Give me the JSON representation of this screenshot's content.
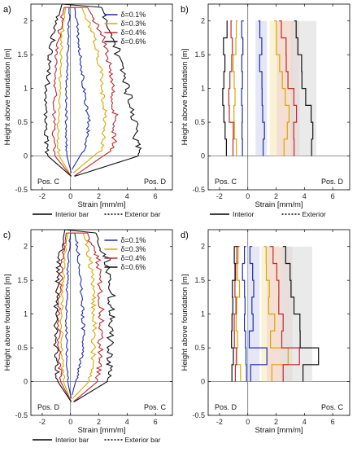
{
  "figure": {
    "ylabel": "Height above foundation [m]",
    "xlabel": "Strain [mm/m]",
    "ytick_labels": [
      "-0.5",
      "0",
      "0.5",
      "1",
      "1.5",
      "2"
    ],
    "xtick_labels": [
      "-2",
      "0",
      "2",
      "4",
      "6"
    ],
    "legend_entries": [
      "δ=0.1%",
      "δ=0.3%",
      "δ=0.4%",
      "δ=0.6%"
    ],
    "series_colors": [
      "#1f2fa8",
      "#d8a800",
      "#c0282f",
      "#111111"
    ],
    "band_colors": [
      "#cfd3ee",
      "#f4e7b2",
      "#f3cdd0",
      "#d8d8d8"
    ]
  },
  "chart_data": [
    {
      "type": "line",
      "panel_label": "a)",
      "xlabel": "Strain [mm/m]",
      "ylabel": "Height above foundation [m]",
      "xlim": [
        -2.8,
        7.2
      ],
      "ylim": [
        -0.5,
        2.25
      ],
      "grid": false,
      "left_corner_label": "Pos. C",
      "right_corner_label": "Pos. D",
      "legend": [
        "δ=0.1%",
        "δ=0.3%",
        "δ=0.4%",
        "δ=0.6%"
      ],
      "legend_position": "top-right",
      "bottom_legend": [
        "Interior bar",
        "Exterior bar"
      ],
      "series": [
        {
          "name": "δ=0.1%",
          "left": [
            [
              0.05,
              -0.25
            ],
            [
              -0.25,
              0.0
            ],
            [
              -0.3,
              0.2
            ],
            [
              -0.3,
              0.6
            ],
            [
              -0.3,
              1.0
            ],
            [
              -0.2,
              1.4
            ],
            [
              -0.15,
              1.8
            ],
            [
              -0.1,
              2.2
            ]
          ],
          "right": [
            [
              0.1,
              -0.2
            ],
            [
              1.1,
              0.15
            ],
            [
              1.3,
              0.5
            ],
            [
              1.0,
              0.9
            ],
            [
              0.8,
              1.3
            ],
            [
              0.6,
              1.7
            ],
            [
              0.3,
              2.2
            ]
          ]
        },
        {
          "name": "δ=0.3%",
          "left": [
            [
              0.05,
              -0.3
            ],
            [
              -0.8,
              0.0
            ],
            [
              -0.9,
              0.4
            ],
            [
              -0.8,
              0.9
            ],
            [
              -0.7,
              1.4
            ],
            [
              -0.6,
              1.8
            ],
            [
              -0.35,
              2.2
            ]
          ],
          "right": [
            [
              0.2,
              -0.25
            ],
            [
              2.2,
              0.1
            ],
            [
              2.5,
              0.5
            ],
            [
              2.3,
              0.9
            ],
            [
              2.1,
              1.3
            ],
            [
              1.6,
              1.8
            ],
            [
              0.8,
              2.2
            ]
          ]
        },
        {
          "name": "δ=0.4%",
          "left": [
            [
              0.05,
              -0.3
            ],
            [
              -1.1,
              0.0
            ],
            [
              -1.2,
              0.4
            ],
            [
              -1.1,
              0.9
            ],
            [
              -1.0,
              1.4
            ],
            [
              -0.8,
              1.8
            ],
            [
              -0.45,
              2.2
            ]
          ],
          "right": [
            [
              0.25,
              -0.3
            ],
            [
              3.0,
              0.1
            ],
            [
              3.2,
              0.5
            ],
            [
              3.0,
              0.9
            ],
            [
              2.8,
              1.3
            ],
            [
              2.3,
              1.8
            ],
            [
              1.2,
              2.2
            ]
          ]
        },
        {
          "name": "δ=0.6%",
          "left": [
            [
              0.05,
              -0.3
            ],
            [
              -1.6,
              0.0
            ],
            [
              -1.8,
              0.4
            ],
            [
              -1.7,
              0.9
            ],
            [
              -1.5,
              1.4
            ],
            [
              -1.2,
              1.8
            ],
            [
              -0.6,
              2.25
            ]
          ],
          "right": [
            [
              0.3,
              -0.3
            ],
            [
              4.8,
              0.0
            ],
            [
              4.6,
              0.4
            ],
            [
              4.1,
              0.9
            ],
            [
              3.6,
              1.3
            ],
            [
              3.0,
              1.8
            ],
            [
              2.2,
              2.2
            ]
          ]
        }
      ]
    },
    {
      "type": "line",
      "panel_label": "b)",
      "xlabel": "Strain [mm/m]",
      "ylabel": "Height above foundation [m]",
      "xlim": [
        -2.8,
        7.2
      ],
      "ylim": [
        -0.5,
        2.25
      ],
      "grid": false,
      "left_corner_label": "Pos. C",
      "right_corner_label": "Pos. D",
      "bottom_legend": [
        "Interior",
        "Exterior"
      ],
      "series": [
        {
          "name": "δ=0.1%",
          "left": [
            [
              -0.3,
              0.0
            ],
            [
              -0.3,
              0.6
            ],
            [
              -0.4,
              1.0
            ],
            [
              -0.35,
              1.5
            ],
            [
              -0.3,
              2.0
            ]
          ],
          "right": [
            [
              1.0,
              0.0
            ],
            [
              1.1,
              0.4
            ],
            [
              1.0,
              0.8
            ],
            [
              0.9,
              1.4
            ],
            [
              0.8,
              2.0
            ]
          ]
        },
        {
          "name": "δ=0.3%",
          "left": [
            [
              -0.8,
              0.0
            ],
            [
              -0.9,
              0.6
            ],
            [
              -1.0,
              1.0
            ],
            [
              -0.9,
              1.6
            ],
            [
              -0.8,
              2.0
            ]
          ],
          "right": [
            [
              2.6,
              0.0
            ],
            [
              2.9,
              0.5
            ],
            [
              2.4,
              0.9
            ],
            [
              2.1,
              1.4
            ],
            [
              1.8,
              2.0
            ]
          ]
        },
        {
          "name": "δ=0.4%",
          "left": [
            [
              -1.1,
              0.0
            ],
            [
              -1.2,
              0.6
            ],
            [
              -1.3,
              1.0
            ],
            [
              -1.2,
              1.6
            ],
            [
              -1.0,
              2.0
            ]
          ],
          "right": [
            [
              3.2,
              0.0
            ],
            [
              3.4,
              0.5
            ],
            [
              3.0,
              0.9
            ],
            [
              2.7,
              1.4
            ],
            [
              2.3,
              2.0
            ]
          ]
        },
        {
          "name": "δ=0.6%",
          "left": [
            [
              -1.6,
              0.0
            ],
            [
              -1.8,
              0.6
            ],
            [
              -1.7,
              1.0
            ],
            [
              -1.6,
              1.6
            ],
            [
              -1.4,
              2.0
            ]
          ],
          "right": [
            [
              4.6,
              0.0
            ],
            [
              4.4,
              0.6
            ],
            [
              3.9,
              1.0
            ],
            [
              3.7,
              1.4
            ],
            [
              3.3,
              2.0
            ]
          ]
        }
      ]
    },
    {
      "type": "line",
      "panel_label": "c)",
      "xlabel": "Strain [mm/m]",
      "ylabel": "Height above foundation [m]",
      "xlim": [
        -2.8,
        7.2
      ],
      "ylim": [
        -0.5,
        2.25
      ],
      "grid": false,
      "left_corner_label": "Pos. D",
      "right_corner_label": "Pos. C",
      "legend": [
        "δ=0.1%",
        "δ=0.3%",
        "δ=0.4%",
        "δ=0.6%"
      ],
      "legend_position": "top-right",
      "bottom_legend": [
        "Interior bar",
        "Exterior bar"
      ],
      "series": [
        {
          "name": "δ=0.1%",
          "left": [
            [
              0.05,
              -0.25
            ],
            [
              -0.2,
              0.0
            ],
            [
              -0.25,
              0.4
            ],
            [
              -0.3,
              0.9
            ],
            [
              -0.25,
              1.4
            ],
            [
              -0.15,
              1.8
            ],
            [
              0.0,
              2.2
            ]
          ],
          "right": [
            [
              0.1,
              -0.2
            ],
            [
              0.5,
              0.1
            ],
            [
              0.9,
              0.5
            ],
            [
              0.9,
              0.9
            ],
            [
              0.8,
              1.3
            ],
            [
              0.6,
              1.8
            ],
            [
              0.3,
              2.2
            ]
          ]
        },
        {
          "name": "δ=0.3%",
          "left": [
            [
              0.05,
              -0.3
            ],
            [
              -0.5,
              0.0
            ],
            [
              -0.6,
              0.4
            ],
            [
              -0.65,
              0.9
            ],
            [
              -0.55,
              1.4
            ],
            [
              -0.45,
              1.8
            ],
            [
              -0.2,
              2.2
            ]
          ],
          "right": [
            [
              0.15,
              -0.25
            ],
            [
              1.3,
              0.0
            ],
            [
              1.6,
              0.4
            ],
            [
              1.7,
              0.9
            ],
            [
              1.6,
              1.3
            ],
            [
              1.4,
              1.8
            ],
            [
              0.9,
              2.2
            ]
          ]
        },
        {
          "name": "δ=0.4%",
          "left": [
            [
              0.05,
              -0.3
            ],
            [
              -0.7,
              0.0
            ],
            [
              -0.8,
              0.4
            ],
            [
              -0.85,
              0.9
            ],
            [
              -0.75,
              1.4
            ],
            [
              -0.6,
              1.8
            ],
            [
              -0.3,
              2.2
            ]
          ],
          "right": [
            [
              0.2,
              -0.3
            ],
            [
              1.9,
              0.0
            ],
            [
              2.1,
              0.4
            ],
            [
              2.2,
              0.9
            ],
            [
              2.1,
              1.3
            ],
            [
              1.9,
              1.8
            ],
            [
              1.2,
              2.2
            ]
          ]
        },
        {
          "name": "δ=0.6%",
          "left": [
            [
              0.05,
              -0.3
            ],
            [
              -0.9,
              0.0
            ],
            [
              -1.0,
              0.4
            ],
            [
              -1.05,
              0.9
            ],
            [
              -0.95,
              1.4
            ],
            [
              -0.8,
              1.8
            ],
            [
              -0.4,
              2.25
            ]
          ],
          "right": [
            [
              0.25,
              -0.3
            ],
            [
              2.6,
              0.0
            ],
            [
              2.8,
              0.4
            ],
            [
              2.9,
              0.9
            ],
            [
              2.9,
              1.3
            ],
            [
              2.6,
              1.8
            ],
            [
              1.8,
              2.2
            ]
          ]
        }
      ]
    },
    {
      "type": "line",
      "panel_label": "d)",
      "xlabel": "Strain [mm/m]",
      "ylabel": "Height above foundation [m]",
      "xlim": [
        -2.8,
        7.2
      ],
      "ylim": [
        -0.5,
        2.25
      ],
      "grid": false,
      "left_corner_label": "Pos. D",
      "right_corner_label": "Pos. C",
      "series": [
        {
          "name": "δ=0.1%",
          "left": [
            [
              -0.2,
              0.0
            ],
            [
              -0.3,
              0.6
            ],
            [
              -0.3,
              1.0
            ],
            [
              -0.25,
              1.6
            ],
            [
              -0.2,
              2.0
            ]
          ],
          "right": [
            [
              0.6,
              0.0
            ],
            [
              0.5,
              0.5
            ],
            [
              0.4,
              1.0
            ],
            [
              0.3,
              1.5
            ],
            [
              0.2,
              2.0
            ]
          ]
        },
        {
          "name": "δ=0.3%",
          "left": [
            [
              -0.6,
              0.0
            ],
            [
              -0.8,
              0.5
            ],
            [
              -0.7,
              1.0
            ],
            [
              -0.6,
              1.6
            ],
            [
              -0.5,
              2.0
            ]
          ],
          "right": [
            [
              2.1,
              0.0
            ],
            [
              2.0,
              0.5
            ],
            [
              1.6,
              1.0
            ],
            [
              1.4,
              1.5
            ],
            [
              1.2,
              2.0
            ]
          ]
        },
        {
          "name": "δ=0.4%",
          "left": [
            [
              -0.8,
              0.0
            ],
            [
              -1.0,
              0.5
            ],
            [
              -0.9,
              1.0
            ],
            [
              -0.8,
              1.6
            ],
            [
              -0.6,
              2.0
            ]
          ],
          "right": [
            [
              2.9,
              0.0
            ],
            [
              2.8,
              0.5
            ],
            [
              2.3,
              1.0
            ],
            [
              2.0,
              1.5
            ],
            [
              1.6,
              2.0
            ]
          ]
        },
        {
          "name": "δ=0.6%",
          "left": [
            [
              -1.0,
              0.0
            ],
            [
              -1.2,
              0.5
            ],
            [
              -1.1,
              1.0
            ],
            [
              -1.0,
              1.6
            ],
            [
              -0.8,
              2.0
            ]
          ],
          "right": [
            [
              4.3,
              0.0
            ],
            [
              4.1,
              0.5
            ],
            [
              3.3,
              1.0
            ],
            [
              3.0,
              1.5
            ],
            [
              2.6,
              2.0
            ]
          ]
        }
      ]
    }
  ]
}
